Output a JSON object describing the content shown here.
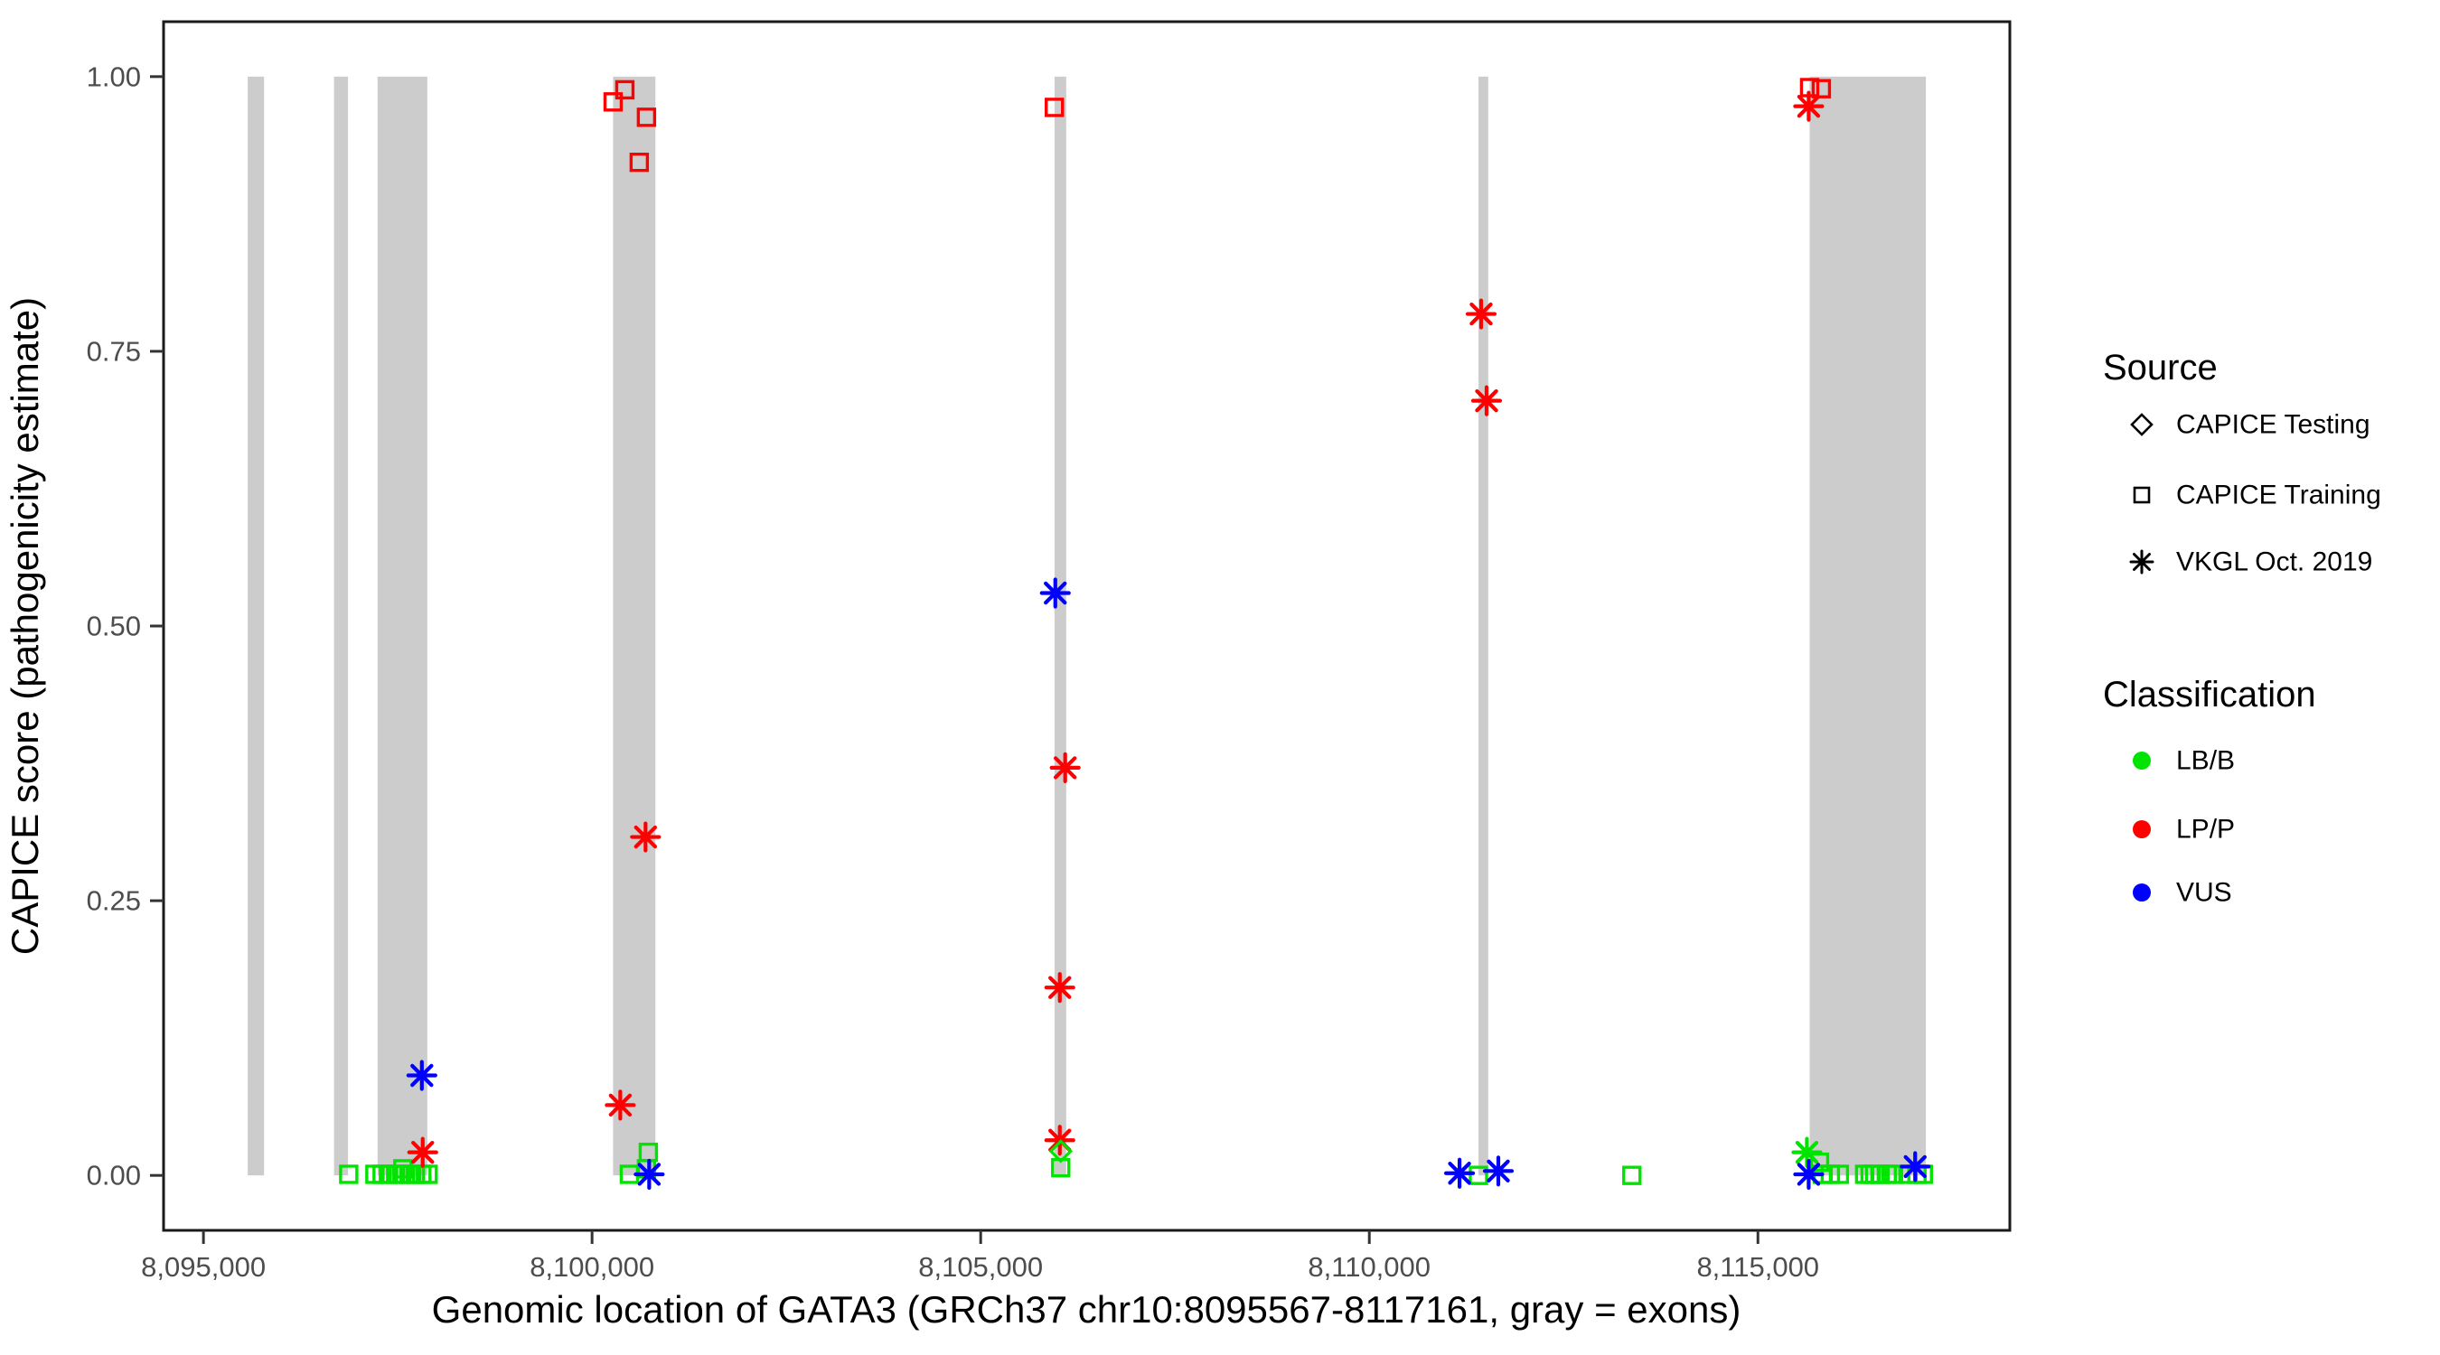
{
  "figure": {
    "x_axis": {
      "label": "Genomic location of GATA3 (GRCh37 chr10:8095567-8117161, gray = exons)",
      "ticks": [
        {
          "value": 8095000,
          "label": "8,095,000"
        },
        {
          "value": 8100000,
          "label": "8,100,000"
        },
        {
          "value": 8105000,
          "label": "8,105,000"
        },
        {
          "value": 8110000,
          "label": "8,110,000"
        },
        {
          "value": 8115000,
          "label": "8,115,000"
        }
      ]
    },
    "y_axis": {
      "label": "CAPICE score (pathogenicity estimate)",
      "ticks": [
        {
          "value": 1.0,
          "label": "1.00"
        },
        {
          "value": 0.75,
          "label": "0.75"
        },
        {
          "value": 0.5,
          "label": "0.50"
        },
        {
          "value": 0.25,
          "label": "0.25"
        },
        {
          "value": 0.0,
          "label": "0.00"
        }
      ]
    },
    "legend": {
      "source": {
        "title": "Source",
        "items": [
          {
            "label": "CAPICE Testing",
            "shape": "diamond"
          },
          {
            "label": "CAPICE Training",
            "shape": "square"
          },
          {
            "label": "VKGL Oct. 2019",
            "shape": "asterisk"
          }
        ]
      },
      "classification": {
        "title": "Classification",
        "items": [
          {
            "label": "LB/B",
            "color": "#00E400"
          },
          {
            "label": "LP/P",
            "color": "#FF0000"
          },
          {
            "label": "VUS",
            "color": "#0000FF"
          }
        ]
      }
    },
    "colors": {
      "LB/B": "#00E400",
      "LP/P": "#FF0000",
      "VUS": "#0000FF",
      "exon": "#CCCCCC",
      "axis_text": "#4D4D4D",
      "border": "#1a1a1a"
    }
  },
  "chart_data": {
    "type": "scatter",
    "title": "",
    "xlabel": "Genomic location of GATA3 (GRCh37 chr10:8095567-8117161, gray = exons)",
    "ylabel": "CAPICE score (pathogenicity estimate)",
    "x_range": [
      8094487,
      8118241
    ],
    "y_range": [
      -0.05,
      1.05
    ],
    "grid": false,
    "legend_position": "right",
    "exons": [
      [
        8095570,
        8095780
      ],
      [
        8096680,
        8096860
      ],
      [
        8097240,
        8097880
      ],
      [
        8100270,
        8100815
      ],
      [
        8105950,
        8106100
      ],
      [
        8111405,
        8111530
      ],
      [
        8115665,
        8117161
      ]
    ],
    "points": [
      {
        "pos": 8106030,
        "score": 0.022,
        "source": "CAPICE Testing",
        "classification": "LB/B"
      },
      {
        "pos": 8100271,
        "score": 0.977,
        "source": "CAPICE Training",
        "classification": "LP/P"
      },
      {
        "pos": 8100422,
        "score": 0.988,
        "source": "CAPICE Training",
        "classification": "LP/P"
      },
      {
        "pos": 8100607,
        "score": 0.922,
        "source": "CAPICE Training",
        "classification": "LP/P"
      },
      {
        "pos": 8100700,
        "score": 0.963,
        "source": "CAPICE Training",
        "classification": "LP/P"
      },
      {
        "pos": 8105948,
        "score": 0.972,
        "source": "CAPICE Training",
        "classification": "LP/P"
      },
      {
        "pos": 8115665,
        "score": 0.99,
        "source": "CAPICE Training",
        "classification": "LP/P"
      },
      {
        "pos": 8115816,
        "score": 0.989,
        "source": "CAPICE Training",
        "classification": "LP/P"
      },
      {
        "pos": 8096869,
        "score": 0.001,
        "source": "CAPICE Training",
        "classification": "LB/B"
      },
      {
        "pos": 8097206,
        "score": 0.001,
        "source": "CAPICE Training",
        "classification": "LB/B"
      },
      {
        "pos": 8097299,
        "score": 0.001,
        "source": "CAPICE Training",
        "classification": "LB/B"
      },
      {
        "pos": 8097380,
        "score": 0.001,
        "source": "CAPICE Training",
        "classification": "LB/B"
      },
      {
        "pos": 8097473,
        "score": 0.001,
        "source": "CAPICE Training",
        "classification": "LB/B"
      },
      {
        "pos": 8097554,
        "score": 0.001,
        "source": "CAPICE Training",
        "classification": "LB/B"
      },
      {
        "pos": 8097566,
        "score": 0.006,
        "source": "CAPICE Training",
        "classification": "LB/B"
      },
      {
        "pos": 8097647,
        "score": 0.001,
        "source": "CAPICE Training",
        "classification": "LB/B"
      },
      {
        "pos": 8097728,
        "score": 0.001,
        "source": "CAPICE Training",
        "classification": "LB/B"
      },
      {
        "pos": 8097810,
        "score": 0.001,
        "source": "CAPICE Training",
        "classification": "LB/B"
      },
      {
        "pos": 8097891,
        "score": 0.001,
        "source": "CAPICE Training",
        "classification": "LB/B"
      },
      {
        "pos": 8100480,
        "score": 0.001,
        "source": "CAPICE Training",
        "classification": "LB/B"
      },
      {
        "pos": 8100700,
        "score": 0.006,
        "source": "CAPICE Training",
        "classification": "LB/B"
      },
      {
        "pos": 8100724,
        "score": 0.021,
        "source": "CAPICE Training",
        "classification": "LB/B"
      },
      {
        "pos": 8106030,
        "score": 0.007,
        "source": "CAPICE Training",
        "classification": "LB/B"
      },
      {
        "pos": 8111404,
        "score": 0.0,
        "source": "CAPICE Training",
        "classification": "LB/B"
      },
      {
        "pos": 8113378,
        "score": 0.0,
        "source": "CAPICE Training",
        "classification": "LB/B"
      },
      {
        "pos": 8115793,
        "score": 0.012,
        "source": "CAPICE Training",
        "classification": "LB/B"
      },
      {
        "pos": 8115828,
        "score": 0.001,
        "source": "CAPICE Training",
        "classification": "LB/B"
      },
      {
        "pos": 8115932,
        "score": 0.001,
        "source": "CAPICE Training",
        "classification": "LB/B"
      },
      {
        "pos": 8116048,
        "score": 0.001,
        "source": "CAPICE Training",
        "classification": "LB/B"
      },
      {
        "pos": 8116373,
        "score": 0.001,
        "source": "CAPICE Training",
        "classification": "LB/B"
      },
      {
        "pos": 8116443,
        "score": 0.001,
        "source": "CAPICE Training",
        "classification": "LB/B"
      },
      {
        "pos": 8116501,
        "score": 0.001,
        "source": "CAPICE Training",
        "classification": "LB/B"
      },
      {
        "pos": 8116570,
        "score": 0.001,
        "source": "CAPICE Training",
        "classification": "LB/B"
      },
      {
        "pos": 8116663,
        "score": 0.001,
        "source": "CAPICE Training",
        "classification": "LB/B"
      },
      {
        "pos": 8116744,
        "score": 0.001,
        "source": "CAPICE Training",
        "classification": "LB/B"
      },
      {
        "pos": 8116930,
        "score": 0.001,
        "source": "CAPICE Training",
        "classification": "LB/B"
      },
      {
        "pos": 8117046,
        "score": 0.001,
        "source": "CAPICE Training",
        "classification": "LB/B"
      },
      {
        "pos": 8117128,
        "score": 0.001,
        "source": "CAPICE Training",
        "classification": "LB/B"
      },
      {
        "pos": 8097821,
        "score": 0.021,
        "source": "VKGL Oct. 2019",
        "classification": "LP/P"
      },
      {
        "pos": 8100363,
        "score": 0.064,
        "source": "VKGL Oct. 2019",
        "classification": "LP/P"
      },
      {
        "pos": 8100688,
        "score": 0.308,
        "source": "VKGL Oct. 2019",
        "classification": "LP/P"
      },
      {
        "pos": 8106018,
        "score": 0.032,
        "source": "VKGL Oct. 2019",
        "classification": "LP/P"
      },
      {
        "pos": 8106018,
        "score": 0.171,
        "source": "VKGL Oct. 2019",
        "classification": "LP/P"
      },
      {
        "pos": 8106087,
        "score": 0.371,
        "source": "VKGL Oct. 2019",
        "classification": "LP/P"
      },
      {
        "pos": 8111439,
        "score": 0.784,
        "source": "VKGL Oct. 2019",
        "classification": "LP/P"
      },
      {
        "pos": 8111509,
        "score": 0.705,
        "source": "VKGL Oct. 2019",
        "classification": "LP/P"
      },
      {
        "pos": 8115653,
        "score": 0.973,
        "source": "VKGL Oct. 2019",
        "classification": "LP/P"
      },
      {
        "pos": 8115630,
        "score": 0.021,
        "source": "VKGL Oct. 2019",
        "classification": "LB/B"
      },
      {
        "pos": 8097810,
        "score": 0.091,
        "source": "VKGL Oct. 2019",
        "classification": "VUS"
      },
      {
        "pos": 8100735,
        "score": 0.001,
        "source": "VKGL Oct. 2019",
        "classification": "VUS"
      },
      {
        "pos": 8105960,
        "score": 0.53,
        "source": "VKGL Oct. 2019",
        "classification": "VUS"
      },
      {
        "pos": 8111161,
        "score": 0.002,
        "source": "VKGL Oct. 2019",
        "classification": "VUS"
      },
      {
        "pos": 8111660,
        "score": 0.004,
        "source": "VKGL Oct. 2019",
        "classification": "VUS"
      },
      {
        "pos": 8115653,
        "score": 0.001,
        "source": "VKGL Oct. 2019",
        "classification": "VUS"
      },
      {
        "pos": 8117023,
        "score": 0.008,
        "source": "VKGL Oct. 2019",
        "classification": "VUS"
      }
    ]
  }
}
